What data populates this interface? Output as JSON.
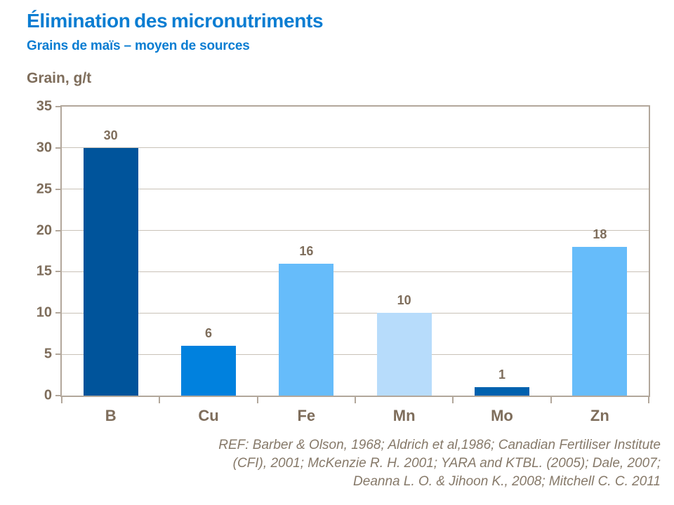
{
  "title": "Élimination des micronutriments",
  "subtitle": "Grains de maïs – moyen de sources",
  "y_axis_title": "Grain, g/t",
  "reference": {
    "lines": [
      "REF: Barber & Olson, 1968; Aldrich et al,1986; Canadian Fertiliser Institute",
      "(CFI),  2001; McKenzie R. H. 2001; YARA and KTBL. (2005); Dale, 2007;",
      "Deanna L. O. & Jihoon K.,  2008; Mitchell C. C. 2011"
    ]
  },
  "colors": {
    "title_blue": "#0a7dd2",
    "axis_text_brown": "#7e6d5b",
    "reference_text": "#867969",
    "frame": "#b2a79b",
    "gridline": "#c9c2b8",
    "background": "#ffffff"
  },
  "chart_data": {
    "type": "bar",
    "title": "Élimination des micronutriments",
    "subtitle": "Grains de maïs – moyen de sources",
    "ylabel": "Grain, g/t",
    "xlabel": "",
    "categories": [
      "B",
      "Cu",
      "Fe",
      "Mn",
      "Mo",
      "Zn"
    ],
    "values": [
      30,
      6,
      16,
      10,
      1,
      18
    ],
    "data_labels": [
      "30",
      "6",
      "16",
      "10",
      "1",
      "18"
    ],
    "bar_colors": [
      "#00549b",
      "#0081de",
      "#66bcfa",
      "#b7dcfb",
      "#0061ae",
      "#66bcfa"
    ],
    "ylim": [
      0,
      35
    ],
    "ytick_step": 5,
    "grid": true,
    "legend_position": "none"
  }
}
